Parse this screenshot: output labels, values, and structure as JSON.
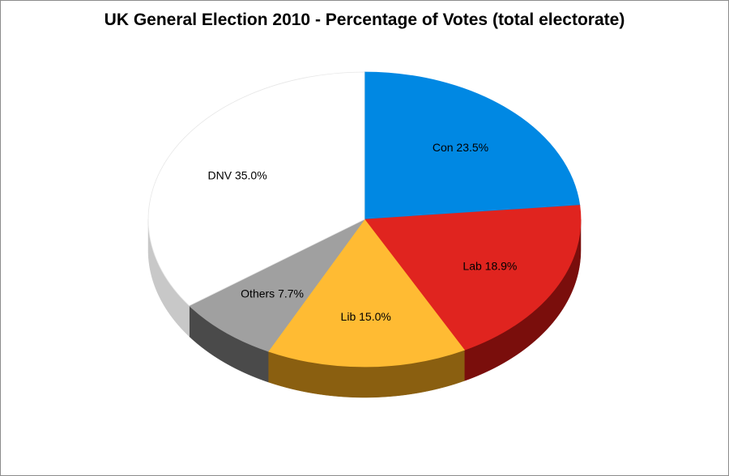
{
  "chart_data": {
    "type": "pie",
    "title": "UK General Election 2010 - Percentage of Votes (total electorate)",
    "slices": [
      {
        "label": "Con",
        "value": 23.5,
        "display": "23.5%",
        "color": "#0088e3",
        "side": "#005a99"
      },
      {
        "label": "Lab",
        "value": 18.9,
        "display": "18.9%",
        "color": "#e0241f",
        "side": "#7a0e0c"
      },
      {
        "label": "Lib",
        "value": 15.0,
        "display": "15.0%",
        "color": "#ffbb33",
        "side": "#8a5f10"
      },
      {
        "label": "Others",
        "value": 7.7,
        "display": "7.7%",
        "color": "#a0a0a0",
        "side": "#4a4a4a"
      },
      {
        "label": "DNV",
        "value": 35.0,
        "display": "35.0%",
        "color": "#ffffff",
        "side": "#c8c8c8"
      }
    ],
    "legend": "none",
    "style": "3d"
  }
}
